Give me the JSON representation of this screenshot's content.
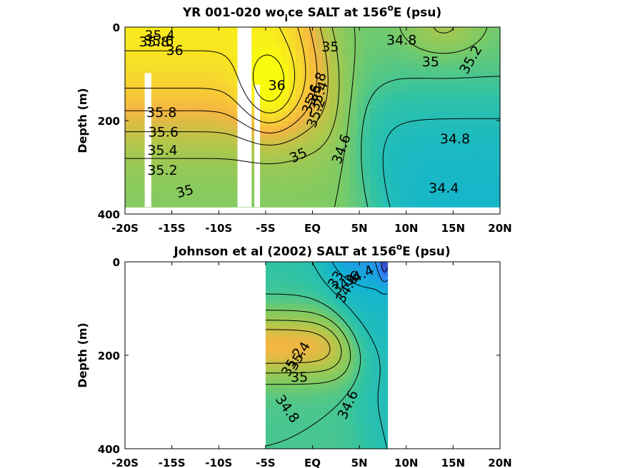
{
  "chart_data": [
    {
      "type": "heatmap",
      "title": {
        "pre": "YR 001-020 wo",
        "sub": "i",
        "mid": "ce SALT at 156",
        "sup": "o",
        "post": "E (psu)"
      },
      "ylabel": "Depth (m)",
      "xlim": [
        -20,
        20
      ],
      "ylim": [
        0,
        400
      ],
      "y_reversed": true,
      "x_ticks": [
        {
          "value": -20,
          "label": "-20S"
        },
        {
          "value": -15,
          "label": "-15S"
        },
        {
          "value": -10,
          "label": "-10S"
        },
        {
          "value": -5,
          "label": "-5S"
        },
        {
          "value": 0,
          "label": "EQ"
        },
        {
          "value": 5,
          "label": "5N"
        },
        {
          "value": 10,
          "label": "10N"
        },
        {
          "value": 15,
          "label": "15N"
        },
        {
          "value": 20,
          "label": "20N"
        }
      ],
      "y_ticks": [
        {
          "value": 0,
          "label": "0"
        },
        {
          "value": 200,
          "label": "200"
        },
        {
          "value": 400,
          "label": "400"
        }
      ],
      "data_extent": {
        "x": [
          -20,
          20
        ],
        "y": [
          0,
          385
        ]
      },
      "gaps": [
        {
          "x": [
            -17.9,
            -17.2
          ],
          "y": [
            100,
            385
          ]
        },
        {
          "x": [
            -8,
            -6.5
          ],
          "y": [
            0,
            385
          ]
        },
        {
          "x": [
            -6.2,
            -5.6
          ],
          "y": [
            125,
            385
          ]
        }
      ],
      "colormap": {
        "name": "parula",
        "range": [
          33.8,
          36.2
        ],
        "stops": [
          {
            "value": 33.8,
            "color": "#3e26a8"
          },
          {
            "value": 34.1,
            "color": "#2e87f7"
          },
          {
            "value": 34.4,
            "color": "#11b4d2"
          },
          {
            "value": 34.7,
            "color": "#2fc3a6"
          },
          {
            "value": 35.0,
            "color": "#7ccb64"
          },
          {
            "value": 35.3,
            "color": "#b2c74a"
          },
          {
            "value": 35.6,
            "color": "#f6b542"
          },
          {
            "value": 35.9,
            "color": "#f6d92d"
          },
          {
            "value": 36.2,
            "color": "#f9fb0e"
          }
        ]
      },
      "field_model": {
        "south": {
          "surface": 36.1,
          "deep": 35.0,
          "center_depth": 190,
          "width": 110
        },
        "hook": {
          "max_extra": 0.55,
          "center_depth": 140,
          "y_width": 90,
          "x_center": -4.5,
          "x_width": 3.0
        },
        "north": {
          "surface": 34.95,
          "mid": 34.45,
          "center_depth": 150,
          "width": 90
        },
        "front": {
          "x_center": 0.3,
          "depth_slope": 0.016,
          "width": 1.6
        },
        "north_surface_bump": {
          "amount": 0.3,
          "x_center": 14,
          "x_width": 4,
          "y_width": 60
        }
      },
      "contour_labels": [
        {
          "text": "35.4",
          "x": -16.3,
          "y": 18
        },
        {
          "text": "35.8",
          "x": -16.9,
          "y": 32
        },
        {
          "text": "35.6",
          "x": -16.4,
          "y": 30
        },
        {
          "text": "36",
          "x": -14.7,
          "y": 50
        },
        {
          "text": "36",
          "x": -3.8,
          "y": 125
        },
        {
          "text": "35",
          "x": 1.9,
          "y": 43
        },
        {
          "text": "34.8",
          "x": 9.5,
          "y": 28
        },
        {
          "text": "35",
          "x": 12.6,
          "y": 75
        },
        {
          "text": "35.2",
          "x": 16.9,
          "y": 70,
          "rotate": -60
        },
        {
          "text": "35.8",
          "x": 0.5,
          "y": 128,
          "rotate": -70
        },
        {
          "text": "35.6",
          "x": -0.1,
          "y": 154,
          "rotate": -70
        },
        {
          "text": "35.4",
          "x": 0.7,
          "y": 148,
          "rotate": -70
        },
        {
          "text": "35.2",
          "x": 0.4,
          "y": 184,
          "rotate": -70
        },
        {
          "text": "35.8",
          "x": -16.1,
          "y": 183
        },
        {
          "text": "35.6",
          "x": -15.9,
          "y": 225
        },
        {
          "text": "35.4",
          "x": -16.0,
          "y": 264
        },
        {
          "text": "35.2",
          "x": -16.0,
          "y": 307
        },
        {
          "text": "35",
          "x": -13.6,
          "y": 352,
          "rotate": -15
        },
        {
          "text": "35",
          "x": -1.5,
          "y": 275,
          "rotate": -25
        },
        {
          "text": "34.6",
          "x": 3.1,
          "y": 261,
          "rotate": -70
        },
        {
          "text": "34.8",
          "x": 15.2,
          "y": 240
        },
        {
          "text": "34.4",
          "x": 14.0,
          "y": 345
        }
      ]
    },
    {
      "type": "heatmap",
      "title": {
        "pre": "Johnson et al (2002) SALT at 156",
        "sup": "o",
        "post": "E (psu)"
      },
      "ylabel": "Depth (m)",
      "xlim": [
        -20,
        20
      ],
      "ylim": [
        0,
        400
      ],
      "y_reversed": true,
      "x_ticks": [
        {
          "value": -20,
          "label": "-20S"
        },
        {
          "value": -15,
          "label": "-15S"
        },
        {
          "value": -10,
          "label": "-10S"
        },
        {
          "value": -5,
          "label": "-5S"
        },
        {
          "value": 0,
          "label": "EQ"
        },
        {
          "value": 5,
          "label": "5N"
        },
        {
          "value": 10,
          "label": "10N"
        },
        {
          "value": 15,
          "label": "15N"
        },
        {
          "value": 20,
          "label": "20N"
        }
      ],
      "y_ticks": [
        {
          "value": 0,
          "label": "0"
        },
        {
          "value": 200,
          "label": "200"
        },
        {
          "value": 400,
          "label": "400"
        }
      ],
      "data_extent": {
        "x": [
          -5,
          8
        ],
        "y": [
          0,
          400
        ]
      },
      "gaps": [],
      "colormap": {
        "name": "parula",
        "range": [
          33.8,
          36.2
        ],
        "stops": [
          {
            "value": 33.8,
            "color": "#3e26a8"
          },
          {
            "value": 34.1,
            "color": "#2e87f7"
          },
          {
            "value": 34.4,
            "color": "#11b4d2"
          },
          {
            "value": 34.7,
            "color": "#2fc3a6"
          },
          {
            "value": 35.0,
            "color": "#7ccb64"
          },
          {
            "value": 35.3,
            "color": "#b2c74a"
          },
          {
            "value": 35.6,
            "color": "#f6b542"
          },
          {
            "value": 35.9,
            "color": "#f6d92d"
          },
          {
            "value": 36.2,
            "color": "#f9fb0e"
          }
        ]
      },
      "field_model": {
        "south": {
          "surface": 34.7,
          "peak": 35.6,
          "peak_depth": 180,
          "peak_width": 70,
          "deep": 34.8
        },
        "north": {
          "surface": 34.1,
          "mid": 34.5,
          "deep": 34.55
        },
        "front": {
          "x_center": 1.5,
          "depth_slope": 0.012,
          "width": 1.2
        },
        "northeast_fresh": {
          "value": 33.9,
          "x_center": 7.7,
          "y_width": 40
        }
      },
      "contour_labels": [
        {
          "text": "34.4",
          "x": 5.0,
          "y": 30,
          "rotate": -25
        },
        {
          "text": "34.6",
          "x": 3.6,
          "y": 45,
          "rotate": -35
        },
        {
          "text": "33",
          "x": 2.5,
          "y": 38,
          "rotate": -60
        },
        {
          "text": "34.8",
          "x": 3.7,
          "y": 58,
          "rotate": -60
        },
        {
          "text": "35.4",
          "x": -1.4,
          "y": 202,
          "rotate": -60
        },
        {
          "text": "35.2",
          "x": -2.1,
          "y": 215,
          "rotate": -60
        },
        {
          "text": "35",
          "x": -1.4,
          "y": 247
        },
        {
          "text": "34.6",
          "x": 3.8,
          "y": 306,
          "rotate": -65
        },
        {
          "text": "34.8",
          "x": -2.7,
          "y": 315,
          "rotate": 55
        }
      ]
    }
  ]
}
